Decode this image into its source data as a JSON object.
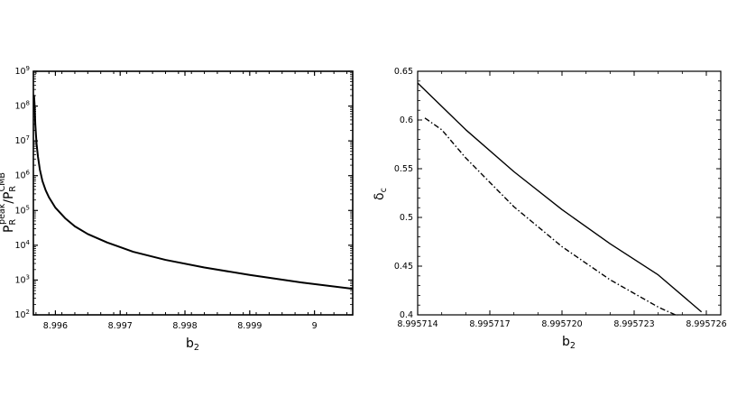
{
  "chart_data": [
    {
      "type": "line",
      "xlabel": "b",
      "xlabel_sub": "2",
      "ylabel": {
        "P": "P",
        "R": "R",
        "peak": "peak",
        "slash": "/P",
        "R2": "R",
        "CMB": "CMB"
      },
      "y_scale": "log",
      "xlim": [
        8.99566,
        9.00059
      ],
      "ylim": [
        100,
        1000000000
      ],
      "x_ticks": [
        8.996,
        8.997,
        8.998,
        8.999,
        9.0
      ],
      "x_tick_labels": [
        "8.996",
        "8.997",
        "8.998",
        "8.999",
        "9"
      ],
      "y_ticks": [
        100,
        1000,
        10000,
        100000,
        1000000,
        10000000,
        100000000,
        1000000000
      ],
      "y_tick_labels": [
        {
          "base": "10",
          "exp": "2"
        },
        {
          "base": "10",
          "exp": "3"
        },
        {
          "base": "10",
          "exp": "4"
        },
        {
          "base": "10",
          "exp": "5"
        },
        {
          "base": "10",
          "exp": "6"
        },
        {
          "base": "10",
          "exp": "7"
        },
        {
          "base": "10",
          "exp": "8"
        },
        {
          "base": "10",
          "exp": "9"
        }
      ],
      "grid": false,
      "series": [
        {
          "style": "solid",
          "x": [
            8.99566,
            8.99567,
            8.99568,
            8.99569,
            8.9957,
            8.99571,
            8.99573,
            8.99576,
            8.9958,
            8.99585,
            8.9959,
            8.996,
            8.99615,
            8.9963,
            8.9965,
            8.9968,
            8.9972,
            8.9977,
            8.9983,
            8.999,
            8.9998,
            9.00059
          ],
          "y": [
            200000000.0,
            200000000.0,
            100000000.0,
            30000000.0,
            15000000.0,
            8000000.0,
            3600000.0,
            1500000.0,
            700000.0,
            380000.0,
            240000.0,
            120000.0,
            60000.0,
            35000.0,
            21000.0,
            12000.0,
            6500.0,
            3800.0,
            2300.0,
            1400.0,
            850,
            560
          ]
        }
      ]
    },
    {
      "type": "line",
      "xlabel": "b",
      "xlabel_sub": "2",
      "ylabel": "δ",
      "ylabel_sub": "c",
      "xlim": [
        8.995714,
        8.9957266
      ],
      "ylim": [
        0.4,
        0.65
      ],
      "x_ticks": [
        8.995714,
        8.995717,
        8.99572,
        8.995723,
        8.995726
      ],
      "x_tick_labels": [
        "8.995714",
        "8.995717",
        "8.995720",
        "8.995723",
        "8.995726"
      ],
      "y_ticks": [
        0.4,
        0.45,
        0.5,
        0.55,
        0.6,
        0.65
      ],
      "y_tick_labels": [
        "0.4",
        "0.45",
        "0.5",
        "0.55",
        "0.6",
        "0.65"
      ],
      "grid": false,
      "series": [
        {
          "style": "solid",
          "x": [
            8.995714,
            8.995716,
            8.995718,
            8.99572,
            8.995722,
            8.995724,
            8.9957258
          ],
          "y": [
            0.638,
            0.59,
            0.547,
            0.508,
            0.473,
            0.441,
            0.403
          ]
        },
        {
          "style": "dash-dot",
          "x": [
            8.9957143,
            8.995715,
            8.995716,
            8.995718,
            8.99572,
            8.995722,
            8.995724,
            8.9957248
          ],
          "y": [
            0.602,
            0.59,
            0.561,
            0.511,
            0.47,
            0.436,
            0.408,
            0.399
          ]
        }
      ]
    }
  ]
}
